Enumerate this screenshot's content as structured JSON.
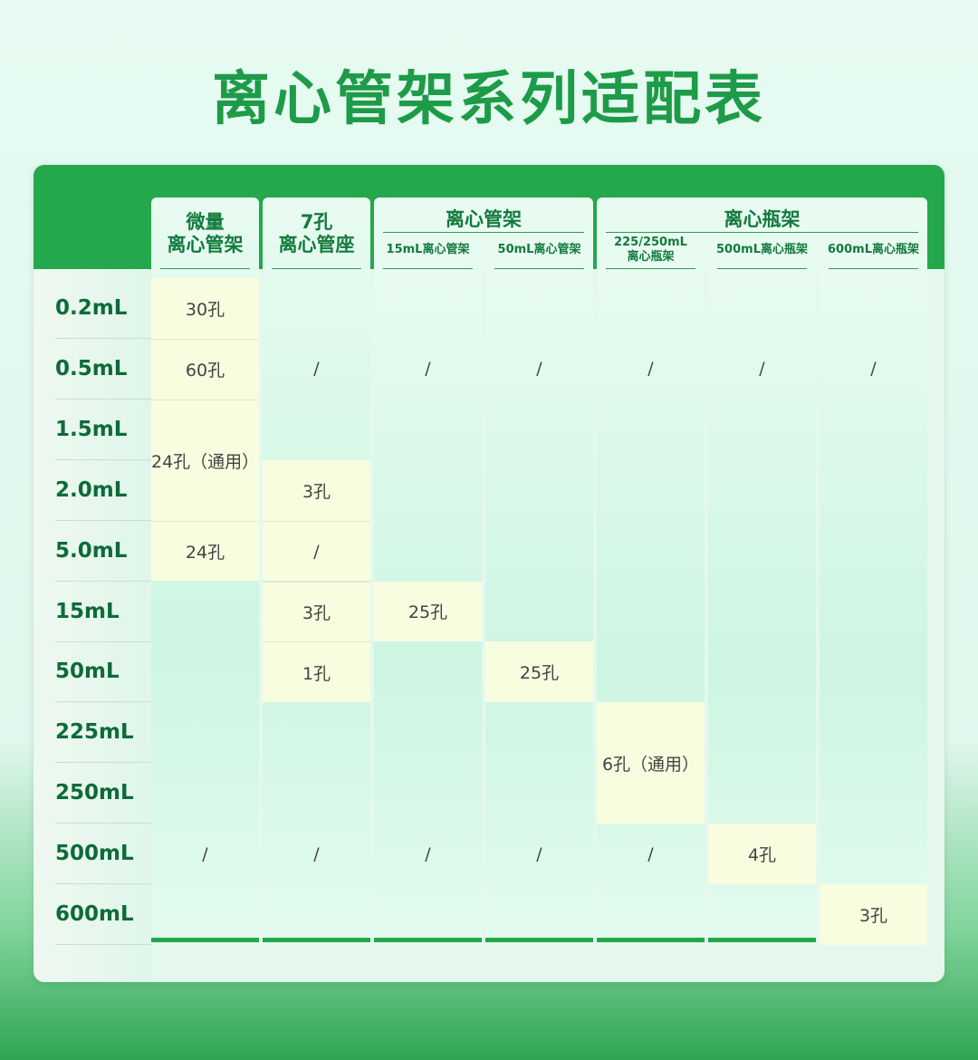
{
  "title": "离心管架系列适配表",
  "colors": {
    "accent": "#24a84c",
    "title": "#1e9b48",
    "highlight": "#f8fde0"
  },
  "rows": [
    "0.2mL",
    "0.5mL",
    "1.5mL",
    "2.0mL",
    "5.0mL",
    "15mL",
    "50mL",
    "225mL",
    "250mL",
    "500mL",
    "600mL"
  ],
  "groups": [
    {
      "label": "离心管架",
      "cols": [
        2,
        3
      ]
    },
    {
      "label": "离心瓶架",
      "cols": [
        4,
        5,
        6
      ]
    }
  ],
  "columns": [
    {
      "header": "微量\n离心管架",
      "cells": [
        {
          "text": "30孔",
          "span": 1,
          "hl": true
        },
        {
          "text": "60孔",
          "span": 1,
          "hl": true
        },
        {
          "text": "24孔（通用）",
          "span": 2,
          "hl": true
        },
        {
          "text": "24孔",
          "span": 1,
          "hl": true
        },
        {
          "text": "",
          "span": 4
        },
        {
          "text": "/",
          "span": 1
        },
        {
          "text": "",
          "span": 1
        }
      ]
    },
    {
      "header": "7孔\n离心管座",
      "cells": [
        {
          "text": "/",
          "span": 3
        },
        {
          "text": "3孔",
          "span": 1,
          "hl": true
        },
        {
          "text": "/",
          "span": 1,
          "hl": true
        },
        {
          "text": "3孔",
          "span": 1,
          "hl": true
        },
        {
          "text": "1孔",
          "span": 1,
          "hl": true
        },
        {
          "text": "",
          "span": 2
        },
        {
          "text": "/",
          "span": 1
        },
        {
          "text": "",
          "span": 1
        }
      ]
    },
    {
      "header": "15mL离心管架",
      "cells": [
        {
          "text": "",
          "span": 1
        },
        {
          "text": "/",
          "span": 1
        },
        {
          "text": "",
          "span": 3
        },
        {
          "text": "25孔",
          "span": 1,
          "hl": true
        },
        {
          "text": "",
          "span": 3
        },
        {
          "text": "/",
          "span": 1
        },
        {
          "text": "",
          "span": 1
        }
      ]
    },
    {
      "header": "50mL离心管架",
      "cells": [
        {
          "text": "",
          "span": 1
        },
        {
          "text": "/",
          "span": 1
        },
        {
          "text": "",
          "span": 4
        },
        {
          "text": "25孔",
          "span": 1,
          "hl": true
        },
        {
          "text": "",
          "span": 2
        },
        {
          "text": "/",
          "span": 1
        },
        {
          "text": "",
          "span": 1
        }
      ]
    },
    {
      "header": "225/250mL\n离心瓶架",
      "cells": [
        {
          "text": "",
          "span": 1
        },
        {
          "text": "/",
          "span": 1
        },
        {
          "text": "",
          "span": 5
        },
        {
          "text": "6孔（通用）",
          "span": 2,
          "hl": true
        },
        {
          "text": "/",
          "span": 1
        },
        {
          "text": "",
          "span": 1
        }
      ]
    },
    {
      "header": "500mL离心瓶架",
      "cells": [
        {
          "text": "",
          "span": 1
        },
        {
          "text": "/",
          "span": 1
        },
        {
          "text": "",
          "span": 7
        },
        {
          "text": "4孔",
          "span": 1,
          "hl": true
        },
        {
          "text": "",
          "span": 1
        }
      ]
    },
    {
      "header": "600mL离心瓶架",
      "cells": [
        {
          "text": "",
          "span": 1
        },
        {
          "text": "/",
          "span": 1
        },
        {
          "text": "",
          "span": 8
        },
        {
          "text": "3孔",
          "span": 1,
          "hl": true
        }
      ]
    }
  ]
}
